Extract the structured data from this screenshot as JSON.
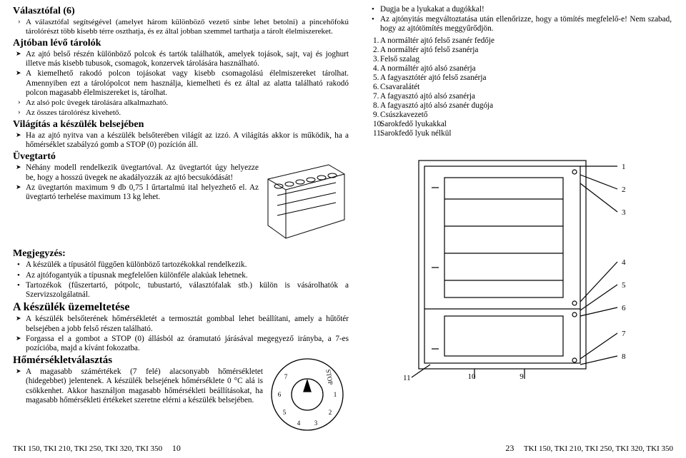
{
  "left": {
    "sec1_title": "Választófal (6)",
    "sec1_p1": "A választófal segítségével (amelyet három különböző vezető sínbe lehet betolni) a pincehőfokú tárolórészt több kisebb térre oszthatja, és ez által jobban szemmel tarthatja a tárolt élelmiszereket.",
    "sec2_title": "Ajtóban lévő tárolók",
    "sec2_b1": "Az ajtó belső részén különböző polcok és tartók találhatók, amelyek tojások, sajt, vaj és joghurt illetve más kisebb tubusok, csomagok, konzervek tárolására használható.",
    "sec2_b2": "A kiemelhető rakodó polcon tojásokat vagy kisebb csomagolású élelmiszereket tárolhat. Amennyiben ezt a tárolópolcot nem használja, kiemelheti és ez által az alatta található rakodó polcon magasabb élelmiszereket is, tárolhat.",
    "sec2_b3": "Az alsó polc üvegek tárolására alkalmazható.",
    "sec2_b4": "Az összes tárolórész kivehető.",
    "sec3_title": "Világítás a készülék belsejében",
    "sec3_b1": "Ha az ajtó nyitva van a készülék belsőterében világít az izzó. A világítás akkor is működik, ha a hőmérséklet szabályzó gomb a STOP (0) pozíción áll.",
    "sec4_title": "Üvegtartó",
    "sec4_b1": "Néhány modell rendelkezik üvegtartóval. Az üvegtartót úgy helyezze be, hogy a hosszú üvegek ne akadályozzák az ajtó becsukódását!",
    "sec4_b2": "Az üvegtartón maximum 9 db 0,75 l űrtartalmú ital helyezhető el. Az üvegtartó terhelése maximum 13 kg lehet.",
    "sec5_title": "Megjegyzés:",
    "sec5_b1": "A készülék a típusától függően különböző tartozékokkal rendelkezik.",
    "sec5_b2": "Az ajtófogantyúk a típusnak megfelelően különféle alakúak lehetnek.",
    "sec5_b3": "Tartozékok (fűszertartó, pótpolc, tubustartó, választófalak stb.) külön is vásárolhatók a Szervizszolgálatnál.",
    "sec6_title": "A készülék üzemeltetése",
    "sec6_b1": "A készülék belsőterének hőmérsékletét a termosztát gombbal lehet beállítani, amely a hűtőtér belsejében a jobb felső részen található.",
    "sec6_b2": "Forgassa el a gombot a STOP (0) állásból az óramutató járásával megegyező irányba, a 7-es pozícióba, majd a kívánt fokozatba.",
    "sec7_title": "Hőmérsékletválasztás",
    "sec7_b1": "A magasabb számértékek (7 felé) alacsonyabb hőmérsékletet (hidegebbet) jelentenek. A készülék belsejének hőmérséklete 0 °C alá is csökkenhet. Akkor használjon magasabb hőmérsékleti beállításokat, ha magasabb hőmérsékleti értékeket szeretne elérni a készülék belsejében.",
    "dial": {
      "labels": [
        "STOP",
        "1",
        "2",
        "3",
        "4",
        "5",
        "6",
        "7"
      ]
    }
  },
  "right": {
    "top_b1": "Dugja be a lyukakat a dugókkal!",
    "top_b2": "Az ajtónyitás megváltoztatása után ellenőrizze, hogy a tömítés megfelelő-e! Nem szabad, hogy az ajtótömítés meggyűrődjön.",
    "list": [
      "A normáltér ajtó felső zsanér fedője",
      "A normáltér ajtó felső zsanérja",
      "Felső szalag",
      "A normáltér ajtó alsó zsanérja",
      "A fagyasztótér ajtó felső zsanérja",
      "Csavaralátét",
      "A fagyasztó ajtó alsó zsanérja",
      "A fagyasztó ajtó alsó zsanér dugója",
      "Csúszkavezető",
      "Sarokfedő lyukakkal",
      "Sarokfedő lyuk nélkül"
    ],
    "diagram_labels": [
      "1",
      "2",
      "3",
      "4",
      "5",
      "6",
      "7",
      "8",
      "9",
      "10",
      "11"
    ]
  },
  "footer": {
    "models": "TKI 150, TKI 210, TKI 250, TKI 320, TKI 350",
    "page_left": "10",
    "page_right": "23"
  }
}
